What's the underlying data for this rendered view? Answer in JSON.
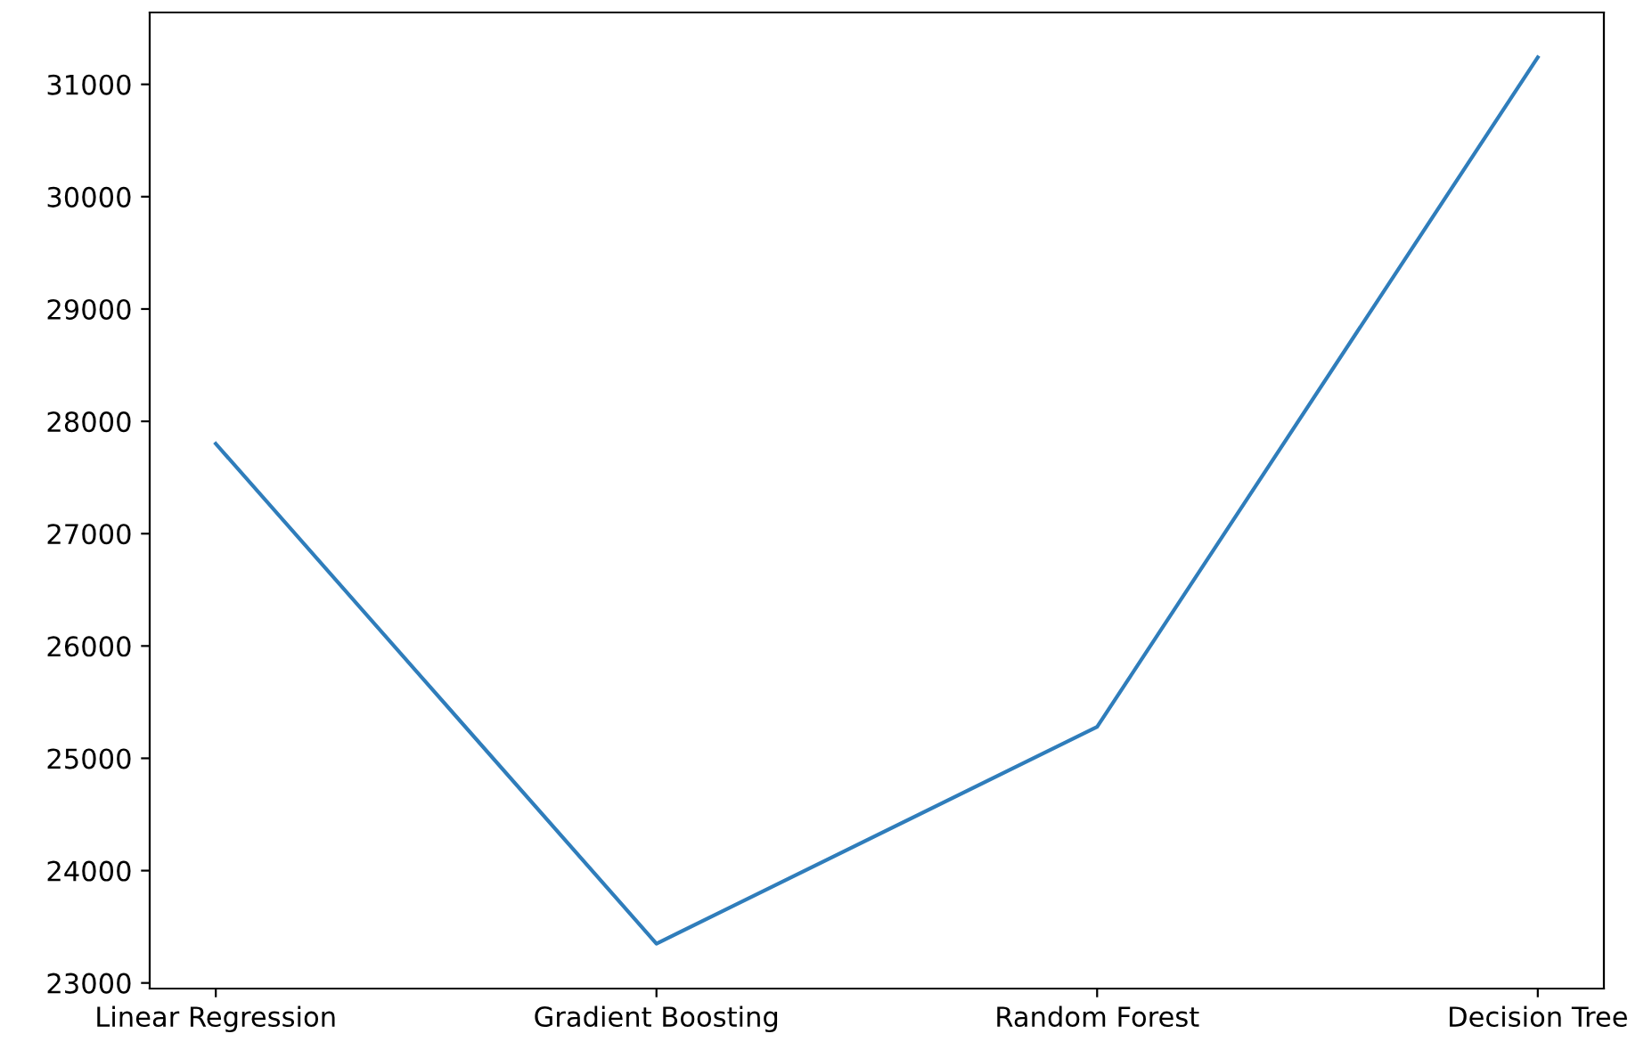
{
  "chart_data": {
    "type": "line",
    "categories": [
      "Linear Regression",
      "Gradient Boosting",
      "Random Forest",
      "Decision Tree"
    ],
    "series": [
      {
        "color": "#2f7dbb",
        "values": [
          27800,
          23350,
          25280,
          31240
        ]
      }
    ],
    "ylim": [
      22950,
      31640
    ],
    "yticks": [
      23000,
      24000,
      25000,
      26000,
      27000,
      28000,
      29000,
      30000,
      31000
    ],
    "grid": false,
    "marker": "none",
    "line_style": "solid"
  }
}
